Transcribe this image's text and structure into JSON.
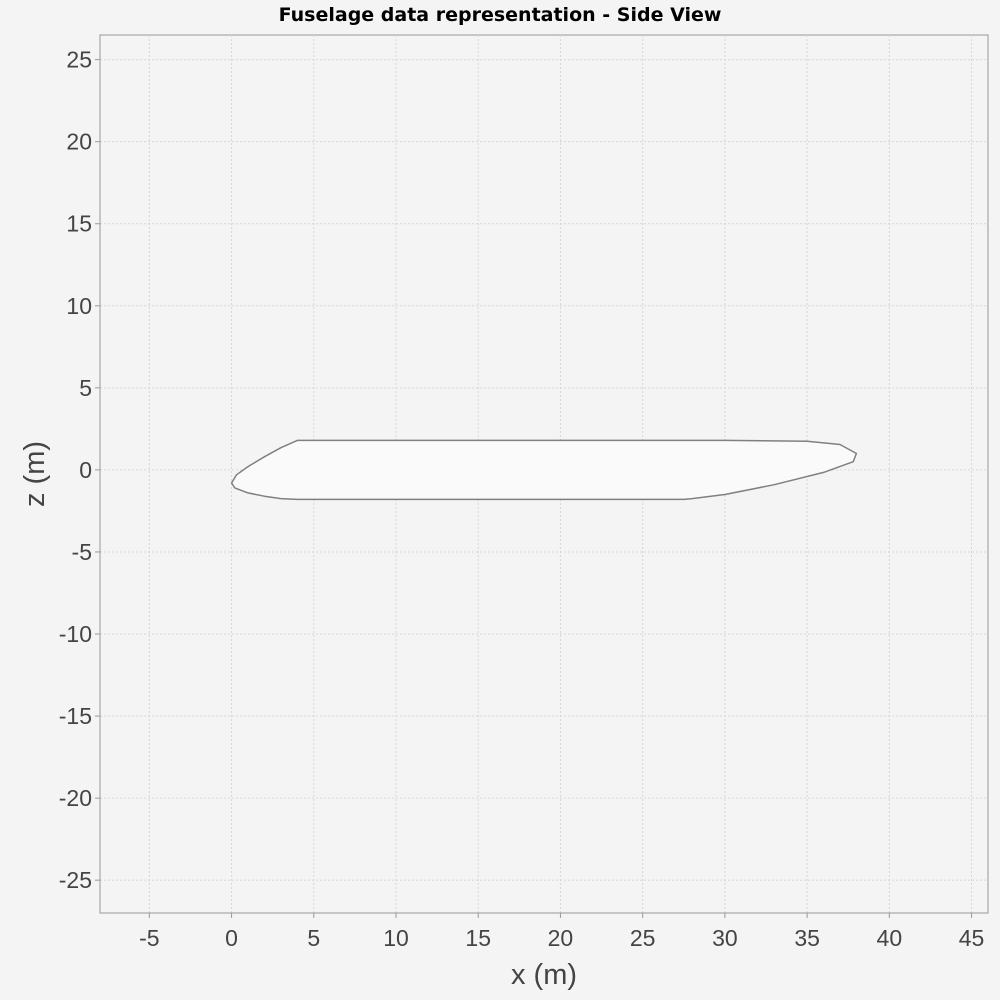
{
  "chart_data": {
    "type": "line",
    "title": "Fuselage data representation - Side View",
    "xlabel": "x (m)",
    "ylabel": "z (m)",
    "xlim": [
      -8,
      46
    ],
    "ylim": [
      -27,
      26.5
    ],
    "xticks": [
      -5,
      0,
      5,
      10,
      15,
      20,
      25,
      30,
      35,
      40,
      45
    ],
    "yticks": [
      25,
      20,
      15,
      10,
      5,
      0,
      -5,
      -10,
      -15,
      -20,
      -25
    ],
    "grid": true,
    "legend": "none",
    "colors": {
      "background": "#f4f4f4",
      "outline": "#808080",
      "fill": "#fafafa"
    },
    "series": [
      {
        "values": [
          [
            0.0,
            -0.8
          ],
          [
            0.3,
            -0.3
          ],
          [
            1.0,
            0.2
          ],
          [
            2.0,
            0.8
          ],
          [
            3.0,
            1.35
          ],
          [
            4.0,
            1.8
          ],
          [
            10.0,
            1.8
          ],
          [
            20.0,
            1.8
          ],
          [
            30.0,
            1.8
          ],
          [
            35.0,
            1.75
          ],
          [
            37.0,
            1.55
          ],
          [
            38.0,
            1.0
          ],
          [
            37.8,
            0.5
          ],
          [
            36.0,
            -0.15
          ],
          [
            33.0,
            -0.9
          ],
          [
            30.0,
            -1.5
          ],
          [
            28.0,
            -1.75
          ],
          [
            27.5,
            -1.8
          ],
          [
            20.0,
            -1.8
          ],
          [
            10.0,
            -1.8
          ],
          [
            4.0,
            -1.8
          ],
          [
            3.0,
            -1.75
          ],
          [
            2.0,
            -1.6
          ],
          [
            1.0,
            -1.4
          ],
          [
            0.2,
            -1.1
          ],
          [
            0.0,
            -0.8
          ]
        ]
      }
    ]
  }
}
